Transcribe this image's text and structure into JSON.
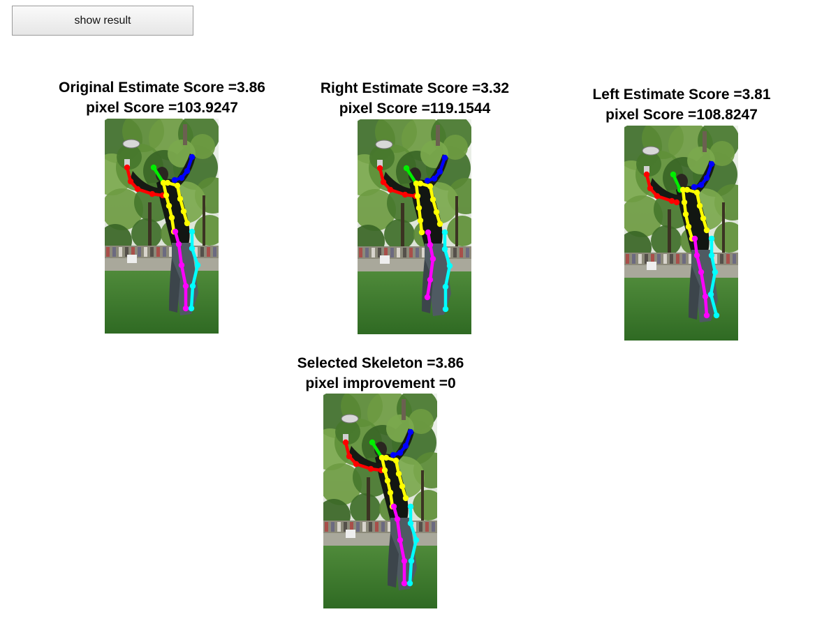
{
  "toolbar": {
    "show_result_label": "show result"
  },
  "panels": {
    "original": {
      "line1": "Original Estimate Score =3.86",
      "line2": "pixel Score =103.9247"
    },
    "right": {
      "line1": "Right Estimate Score =3.32",
      "line2": "pixel Score =119.1544"
    },
    "left": {
      "line1": "Left Estimate Score =3.81",
      "line2": "pixel Score =108.8247"
    },
    "selected": {
      "line1": "Selected Skeleton =3.86",
      "line2": "pixel improvement =0"
    }
  },
  "colors": {
    "right_arm": "#ff0000",
    "head": "#00ee00",
    "left_arm": "#0000ff",
    "torso": "#ffff00",
    "right_leg": "#ff00ff",
    "left_leg": "#00ffff"
  }
}
